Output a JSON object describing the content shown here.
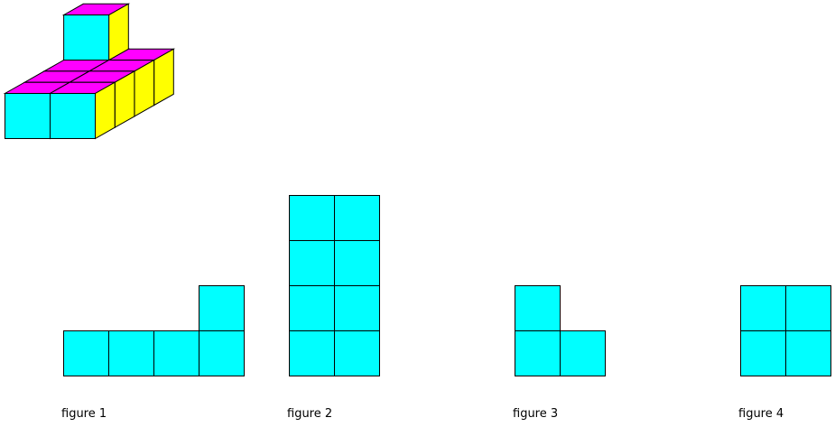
{
  "colors": {
    "front": "#00ffff",
    "top": "#ff00ff",
    "side": "#ffff00",
    "stroke": "#000000"
  },
  "figures": [
    {
      "label": "figure 1"
    },
    {
      "label": "figure 2"
    },
    {
      "label": "figure 3"
    },
    {
      "label": "figure 4"
    }
  ]
}
